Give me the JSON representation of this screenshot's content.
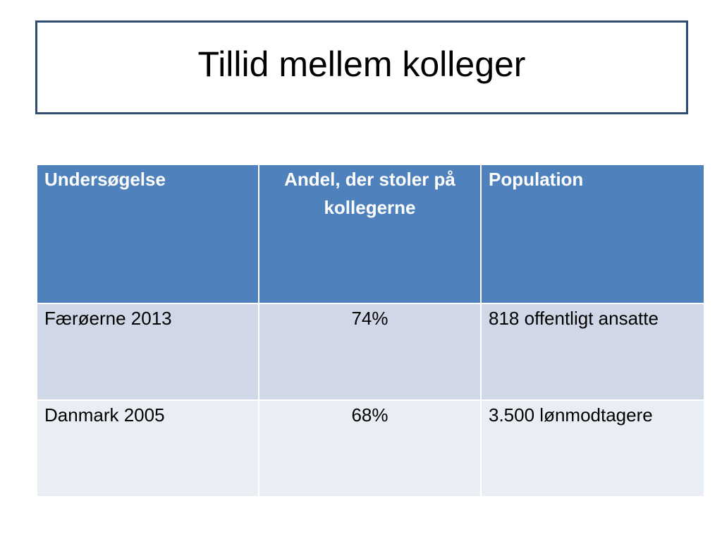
{
  "title": "Tillid mellem kolleger",
  "colors": {
    "title_border": "#2f4d73",
    "header_bg": "#4f81bd",
    "row_odd_bg": "#d0d8e8",
    "row_even_bg": "#e9edf4"
  },
  "table": {
    "headers": [
      "Undersøgelse",
      "Andel, der stoler på kollegerne",
      "Population"
    ],
    "rows": [
      [
        "Færøerne 2013",
        "74%",
        "818 offentligt ansatte"
      ],
      [
        "Danmark 2005",
        "68%",
        "3.500 lønmodtagere"
      ]
    ]
  }
}
